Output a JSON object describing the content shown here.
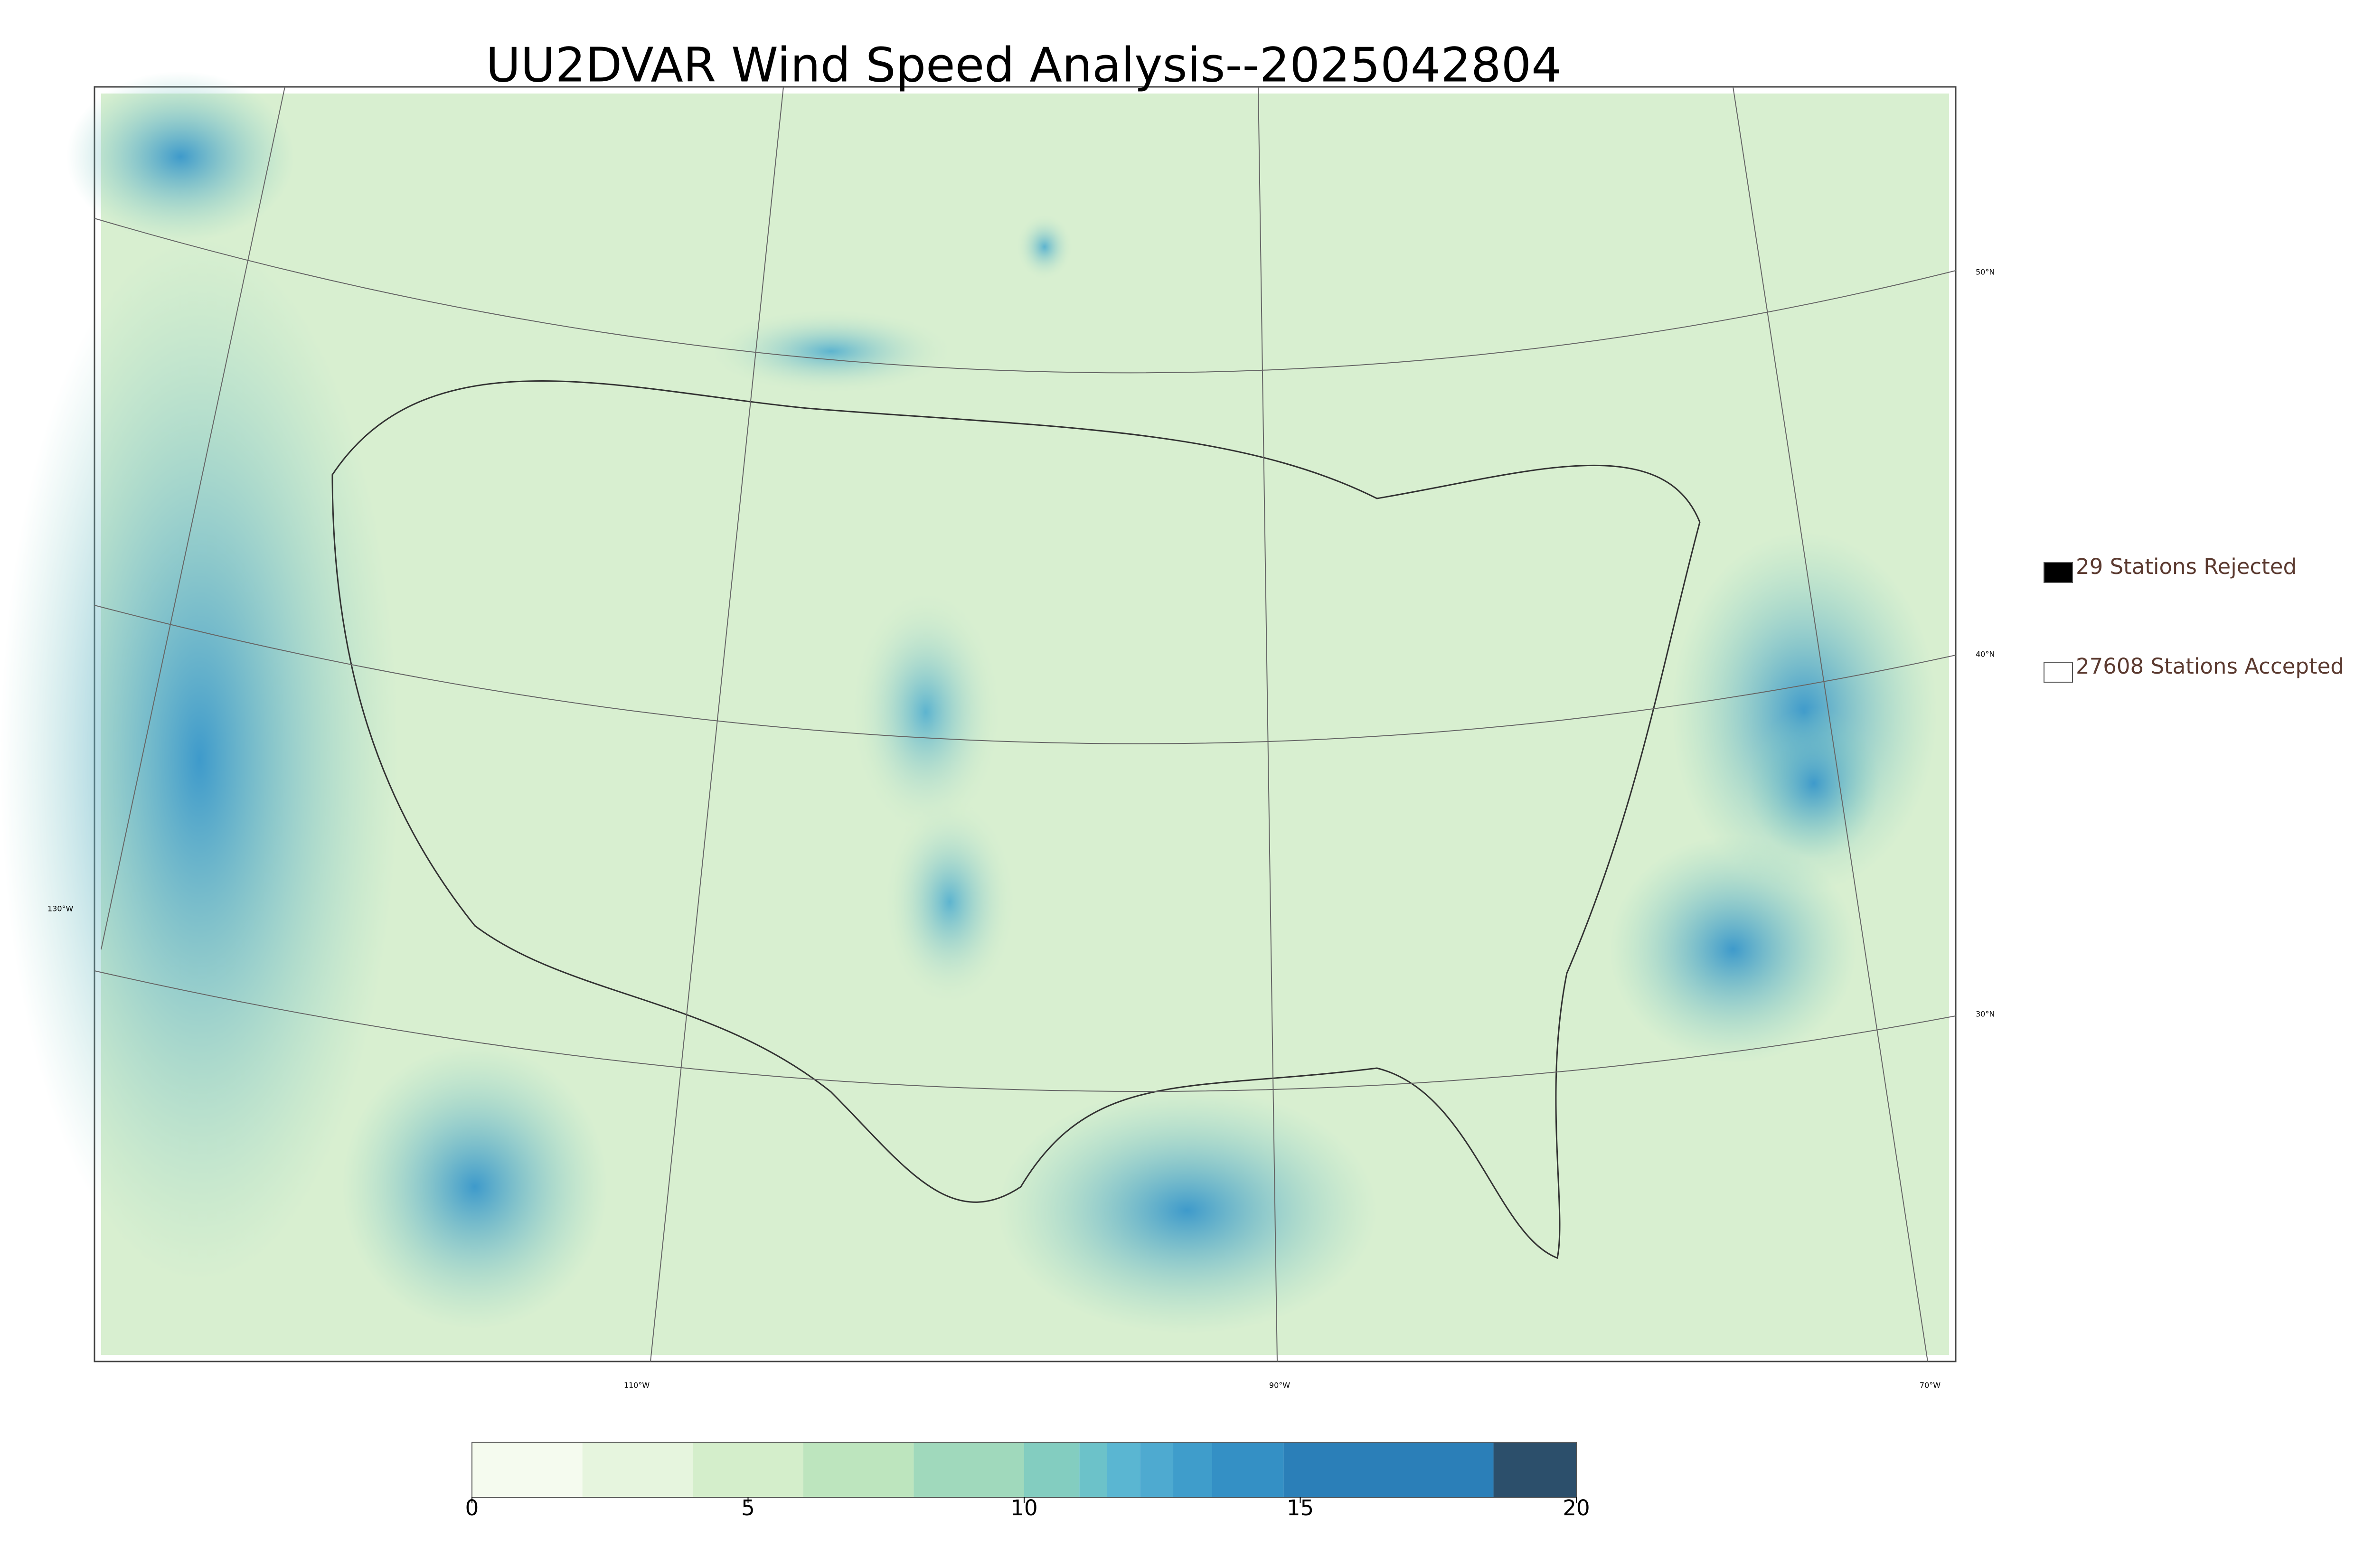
{
  "title": "UU2DVAR Wind Speed Analysis--2025042804",
  "legend": [
    {
      "label": "29 Stations Rejected",
      "color": "#000000"
    },
    {
      "label": "27608 Stations Accepted",
      "color": "#ffffff"
    }
  ],
  "graticule_labels": {
    "latitude": [
      "50°N",
      "40°N",
      "30°N"
    ],
    "longitude": [
      "130°W",
      "110°W",
      "90°W",
      "70°W"
    ]
  },
  "colorbar": {
    "lim": [
      0,
      20
    ],
    "ticks": [
      0,
      5,
      10,
      15,
      20
    ],
    "levels": [
      0,
      2,
      4,
      6,
      8,
      10,
      11,
      11.5,
      12.1,
      12.7,
      13.4,
      14.7,
      18.5,
      20
    ],
    "colors": [
      "#f5fbef",
      "#e6f5de",
      "#d4eecb",
      "#bde5be",
      "#a0d9bc",
      "#83cdc0",
      "#6cc2c9",
      "#5ab6d2",
      "#4eaad0",
      "#3f9dcb",
      "#3490c5",
      "#2b7fb8",
      "#2c4f6b"
    ]
  }
}
